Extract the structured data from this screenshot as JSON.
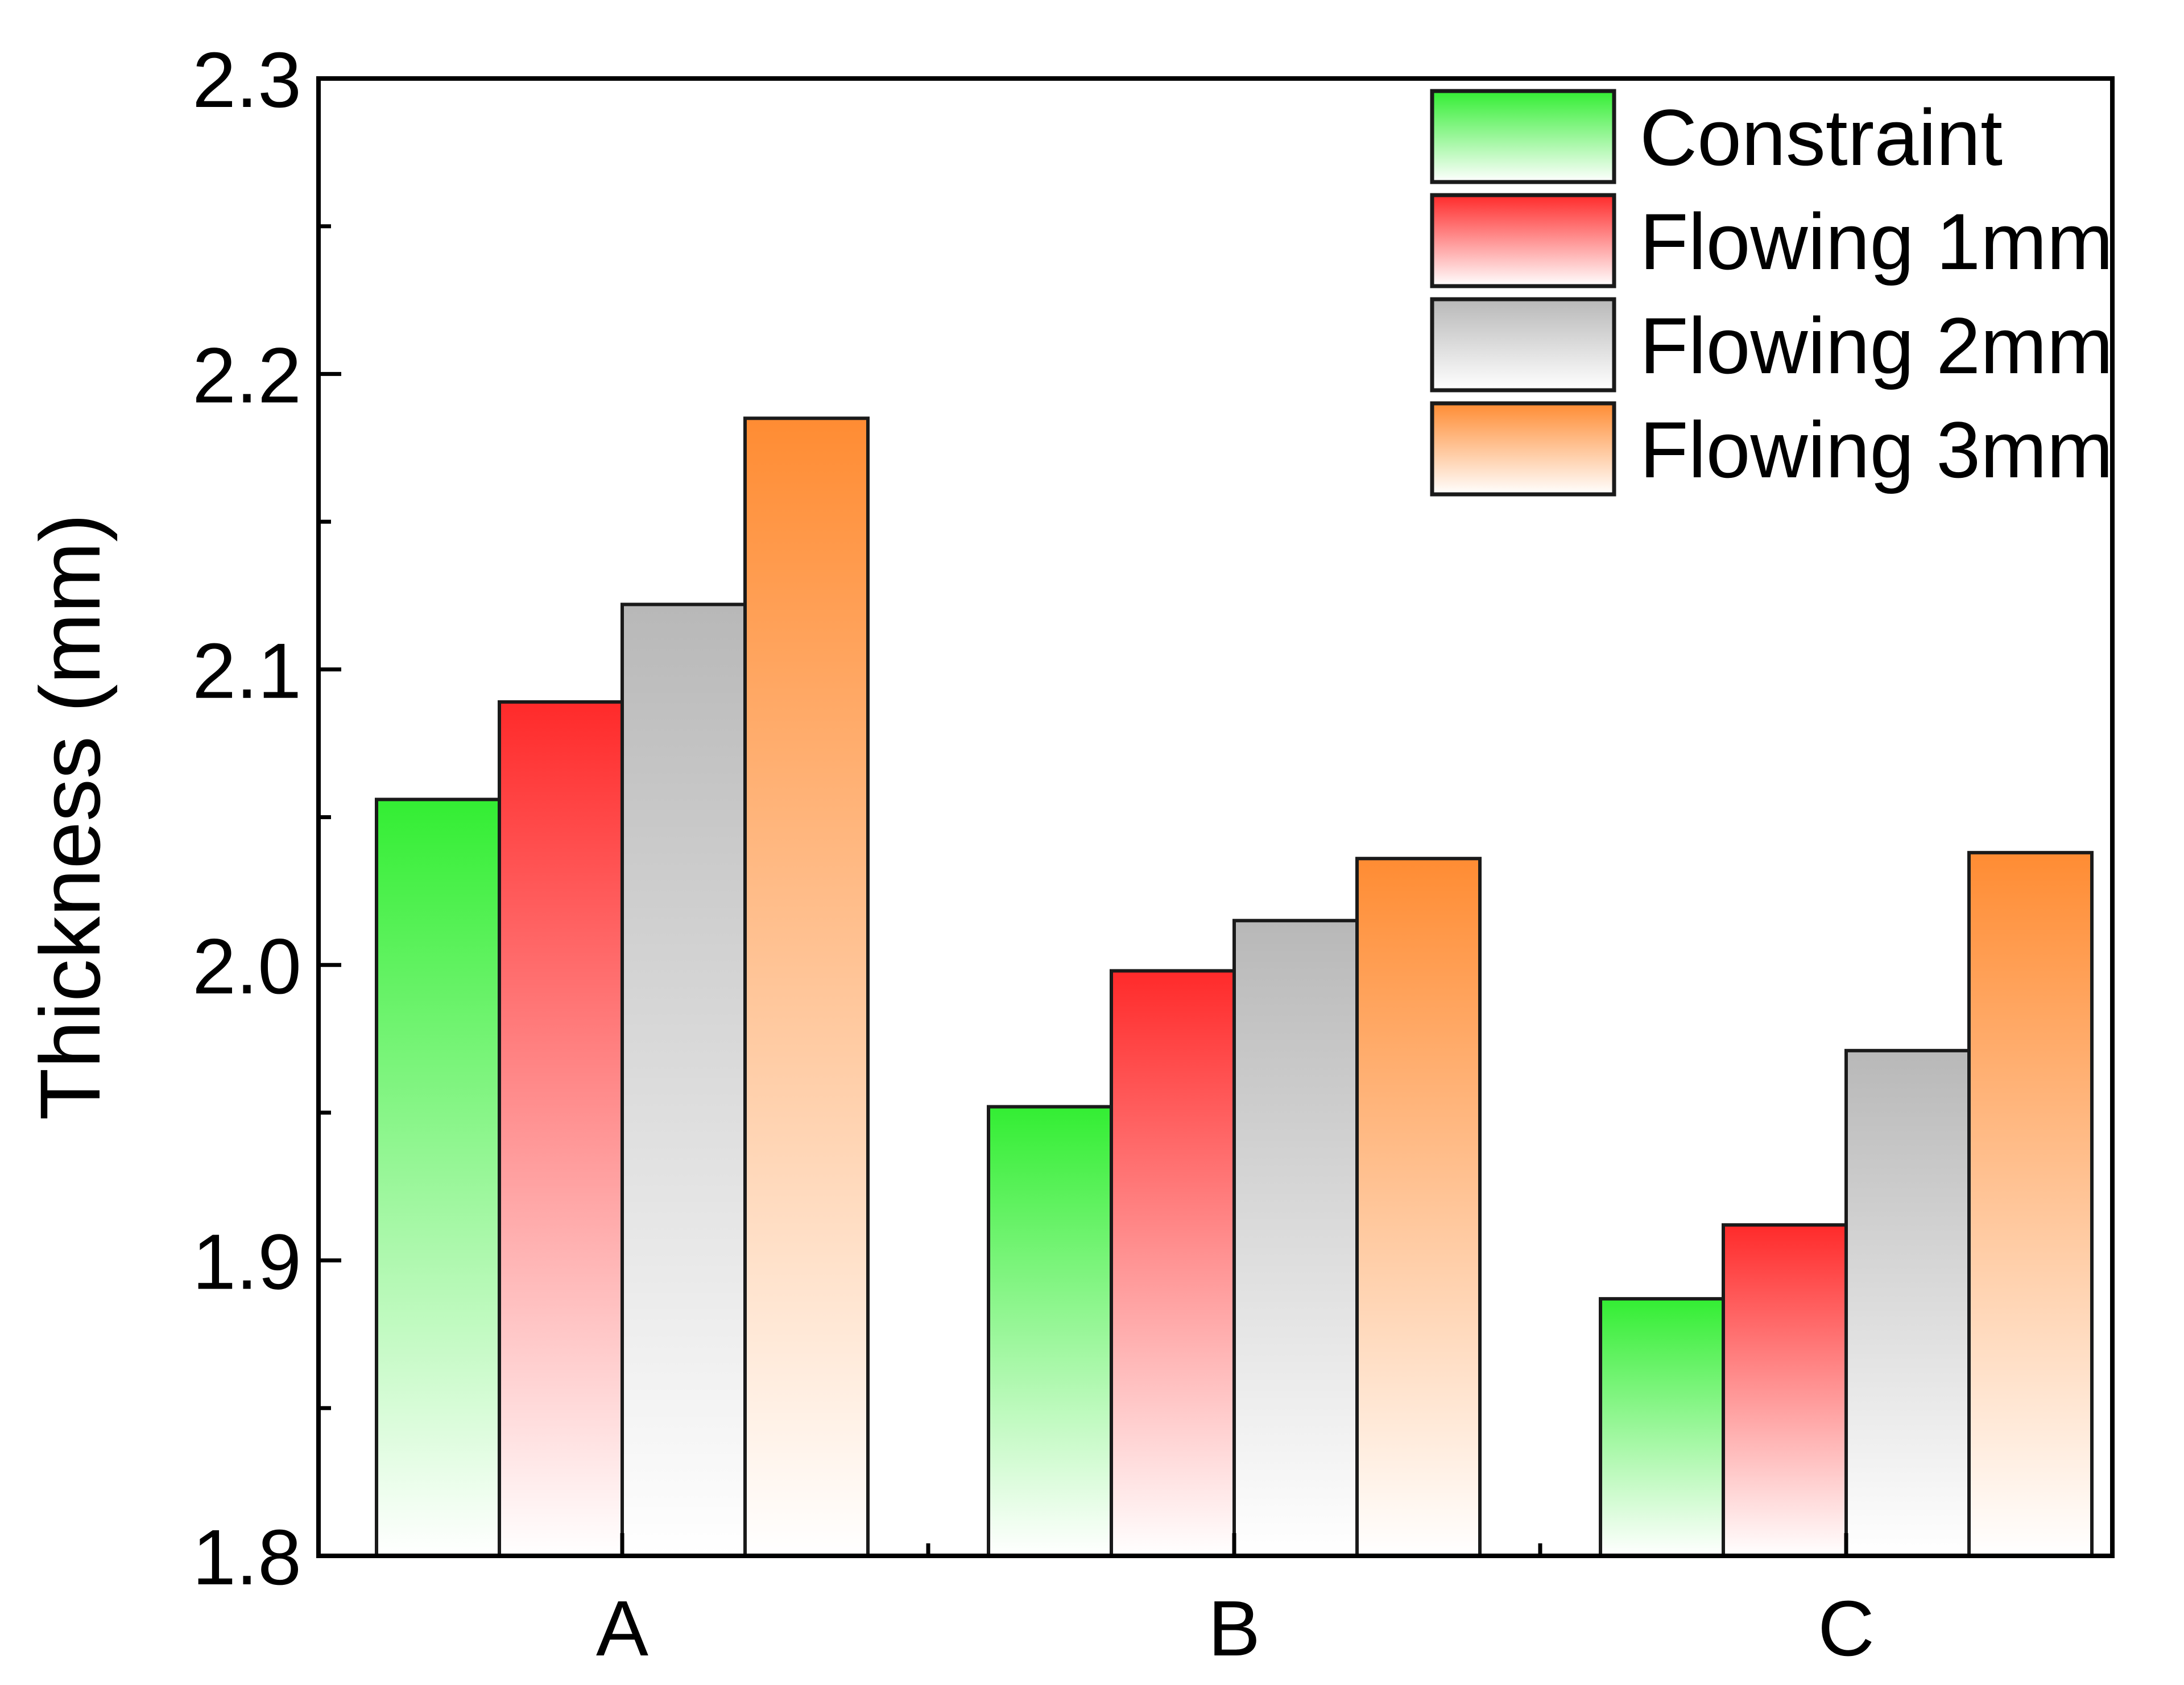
{
  "chart_data": {
    "type": "bar",
    "title": "",
    "xlabel": "",
    "ylabel": "Thickness (mm)",
    "ylim": [
      1.8,
      2.3
    ],
    "yticks": [
      "1.8",
      "1.9",
      "2.0",
      "2.1",
      "2.2",
      "2.3"
    ],
    "categories": [
      "A",
      "B",
      "C"
    ],
    "grid": false,
    "legend_position": "top-right",
    "series": [
      {
        "name": "Constraint",
        "values": [
          2.056,
          1.952,
          1.887
        ],
        "color_top": "#33ee33",
        "color_bottom": "#ffffff"
      },
      {
        "name": "Flowing 1mm",
        "values": [
          2.089,
          1.998,
          1.912
        ],
        "color_top": "#ff2a2a",
        "color_bottom": "#ffffff"
      },
      {
        "name": "Flowing 2mm",
        "values": [
          2.122,
          2.015,
          1.971
        ],
        "color_top": "#b8b8b8",
        "color_bottom": "#ffffff"
      },
      {
        "name": "Flowing 3mm",
        "values": [
          2.185,
          2.036,
          2.038
        ],
        "color_top": "#ff8c33",
        "color_bottom": "#ffffff"
      }
    ]
  }
}
